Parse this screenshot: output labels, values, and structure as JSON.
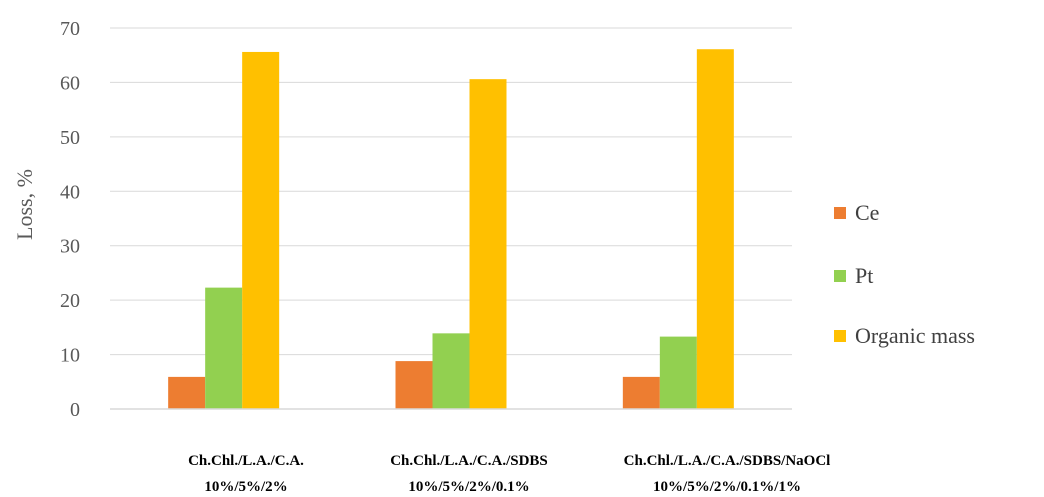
{
  "chart_data": {
    "type": "bar",
    "title": "",
    "xlabel": "",
    "ylabel": "Loss, %",
    "ylim": [
      0,
      70
    ],
    "yticks": [
      0,
      10,
      20,
      30,
      40,
      50,
      60,
      70
    ],
    "grid": true,
    "legend_position": "right",
    "categories": [
      [
        "Ch.Chl./L.A./C.A.",
        "10%/5%/2%"
      ],
      [
        "Ch.Chl./L.A./C.A./SDBS",
        "10%/5%/2%/0.1%"
      ],
      [
        "Ch.Chl./L.A./C.A./SDBS/NaOCl",
        "10%/5%/2%/0.1%/1%"
      ]
    ],
    "series": [
      {
        "name": "Ce",
        "color": "#ED7D31",
        "values": [
          5.9,
          8.8,
          5.9
        ]
      },
      {
        "name": "Pt",
        "color": "#92D050",
        "values": [
          22.3,
          13.9,
          13.3
        ]
      },
      {
        "name": "Organic mass",
        "color": "#FFC000",
        "values": [
          65.6,
          60.6,
          66.1
        ]
      }
    ]
  }
}
